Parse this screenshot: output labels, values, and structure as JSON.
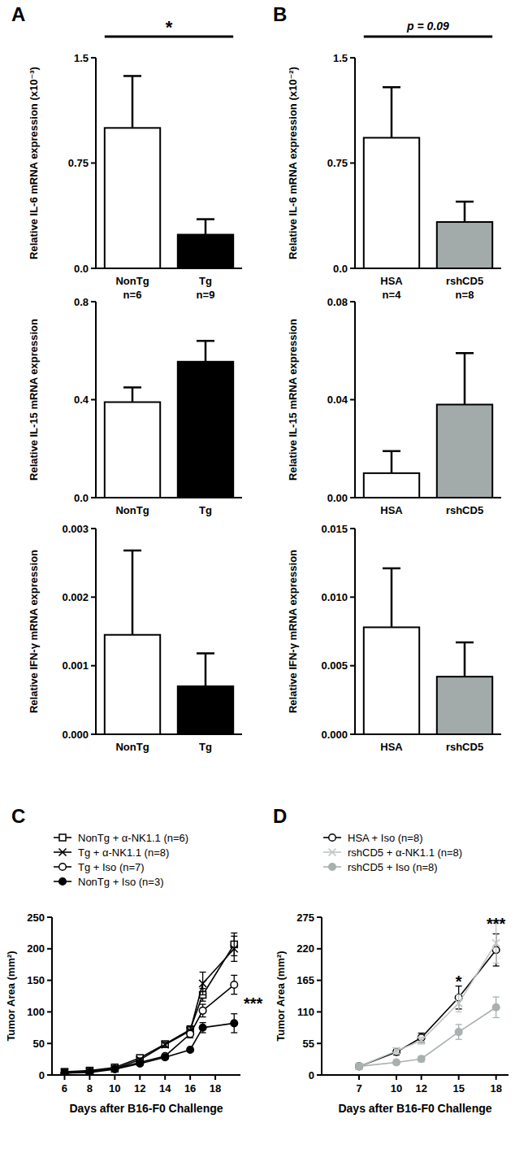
{
  "panel_labels": [
    "A",
    "B",
    "C",
    "D"
  ],
  "chart_data": [
    {
      "type": "bar",
      "y_label": "Relative IL-6 mRNA expression (x10⁻³)",
      "categories": [
        "NonTg",
        "Tg"
      ],
      "sample_sizes": [
        "n=6",
        "n=9"
      ],
      "values": [
        1.0,
        0.24
      ],
      "errors": [
        0.37,
        0.11
      ],
      "colors": [
        "#ffffff",
        "#000000"
      ],
      "ylim": [
        0,
        1.5
      ],
      "yticks": [
        {
          "value": 0,
          "label": "0.0"
        },
        0.75,
        1.5
      ],
      "annotations": [
        {
          "text": "*"
        }
      ]
    },
    {
      "type": "bar",
      "y_label": "Relative IL-15 mRNA expression",
      "categories": [
        "NonTg",
        "Tg"
      ],
      "values": [
        0.39,
        0.555
      ],
      "errors": [
        0.06,
        0.085
      ],
      "colors": [
        "#ffffff",
        "#000000"
      ],
      "ylim": [
        0,
        0.8
      ],
      "yticks": [
        {
          "value": 0,
          "label": "0.0"
        },
        0.4,
        0.8
      ]
    },
    {
      "type": "bar",
      "y_label": "Relative IFN-γ mRNA expression",
      "categories": [
        "NonTg",
        "Tg"
      ],
      "values": [
        0.00145,
        0.0007
      ],
      "errors": [
        0.00123,
        0.00048
      ],
      "colors": [
        "#ffffff",
        "#000000"
      ],
      "ylim": [
        0,
        0.003
      ],
      "yticks": [
        {
          "value": 0,
          "label": "0.000"
        },
        0.001,
        0.002,
        0.003
      ]
    },
    {
      "type": "bar",
      "y_label": "Relative IL-6 mRNA expression (x10⁻²)",
      "categories": [
        "HSA",
        "rshCD5"
      ],
      "sample_sizes": [
        "n=4",
        "n=8"
      ],
      "values": [
        0.93,
        0.33
      ],
      "errors": [
        0.36,
        0.145
      ],
      "colors": [
        "#ffffff",
        "#a3abaa"
      ],
      "ylim": [
        0,
        1.5
      ],
      "yticks": [
        {
          "value": 0,
          "label": "0.0"
        },
        0.75,
        1.5
      ],
      "annotations": [
        {
          "text": "p = 0.09"
        }
      ]
    },
    {
      "type": "bar",
      "y_label": "Relative IL-15 mRNA expression",
      "categories": [
        "HSA",
        "rshCD5"
      ],
      "values": [
        0.01,
        0.038
      ],
      "errors": [
        0.009,
        0.021
      ],
      "colors": [
        "#ffffff",
        "#a3abaa"
      ],
      "ylim": [
        0,
        0.08
      ],
      "yticks": [
        {
          "value": 0,
          "label": "0.00"
        },
        0.04,
        0.08
      ]
    },
    {
      "type": "bar",
      "y_label": "Relative IFN-γ mRNA expression",
      "categories": [
        "HSA",
        "rshCD5"
      ],
      "values": [
        0.0078,
        0.0042
      ],
      "errors": [
        0.0043,
        0.0025
      ],
      "colors": [
        "#ffffff",
        "#a3abaa"
      ],
      "ylim": [
        0,
        0.015
      ],
      "yticks": [
        {
          "value": 0,
          "label": "0.000"
        },
        {
          "value": 0.005,
          "label": "0.005"
        },
        {
          "value": 0.01,
          "label": "0.010"
        },
        {
          "value": 0.015,
          "label": "0.015"
        }
      ]
    },
    {
      "type": "line",
      "x_label": "Days after B16-F0 Challenge",
      "y_label": "Tumor Area (mm²)",
      "x": [
        6,
        8,
        10,
        12,
        14,
        16,
        17,
        19.5
      ],
      "series": [
        {
          "name": "NonTg + α-NK1.1 (n=6)",
          "color": "#000000",
          "marker": "square",
          "line_style": "solid",
          "values": [
            5,
            7,
            12,
            27,
            49,
            72,
            127,
            207
          ],
          "errors": [
            1,
            1,
            2,
            3,
            4,
            6,
            10,
            18
          ]
        },
        {
          "name": "Tg + α-NK1.1 (n=8)",
          "color": "#000000",
          "marker": "x",
          "line_style": "solid",
          "values": [
            4,
            6,
            10,
            24,
            48,
            70,
            145,
            200
          ],
          "errors": [
            1,
            1,
            2,
            3,
            4,
            6,
            18,
            20
          ]
        },
        {
          "name": "Tg + Iso (n=7)",
          "color": "#000000",
          "marker": "circle-open",
          "line_style": "solid",
          "values": [
            3,
            5,
            10,
            20,
            30,
            65,
            102,
            143
          ],
          "errors": [
            1,
            1,
            2,
            2,
            3,
            6,
            10,
            15
          ]
        },
        {
          "name": "NonTg + Iso (n=3)",
          "color": "#000000",
          "marker": "circle",
          "line_style": "solid",
          "values": [
            3,
            4,
            9,
            18,
            28,
            40,
            75,
            82
          ],
          "errors": [
            1,
            1,
            1,
            2,
            3,
            3,
            8,
            15
          ]
        }
      ],
      "xlim": [
        5,
        20
      ],
      "xticks": [
        6,
        8,
        10,
        12,
        14,
        16,
        18
      ],
      "ylim": [
        0,
        250
      ],
      "yticks": [
        0,
        50,
        100,
        150,
        200,
        250
      ],
      "annotations": [
        {
          "text": "***",
          "x": 20,
          "y": 112
        }
      ]
    },
    {
      "type": "line",
      "x_label": "Days after B16-F0 Challenge",
      "y_label": "Tumor Area (mm²)",
      "x": [
        7,
        10,
        12,
        15,
        18
      ],
      "series": [
        {
          "name": "HSA + Iso (n=8)",
          "color": "#000000",
          "marker": "circle-open",
          "line_style": "solid",
          "values": [
            15,
            40,
            65,
            135,
            218
          ],
          "errors": [
            3,
            5,
            8,
            20,
            28
          ]
        },
        {
          "name": "rshCD5 + α-NK1.1 (n=8)",
          "color": "#c0c4c4",
          "marker": "x",
          "line_style": "solid",
          "values": [
            15,
            42,
            60,
            125,
            230
          ],
          "errors": [
            3,
            5,
            6,
            15,
            35
          ]
        },
        {
          "name": "rshCD5 + Iso (n=8)",
          "color": "#a9b0b0",
          "marker": "circle",
          "line_style": "solid",
          "values": [
            15,
            22,
            28,
            75,
            118
          ],
          "errors": [
            2,
            4,
            5,
            13,
            18
          ]
        }
      ],
      "xlim": [
        4,
        19
      ],
      "xticks": [
        7,
        10,
        12,
        15,
        18
      ],
      "ylim": [
        0,
        275
      ],
      "yticks": [
        0,
        55,
        110,
        165,
        220,
        275
      ],
      "annotations": [
        {
          "text": "*",
          "x": 15,
          "y": 162
        },
        {
          "text": "***",
          "x": 18,
          "y": 262
        }
      ]
    }
  ]
}
